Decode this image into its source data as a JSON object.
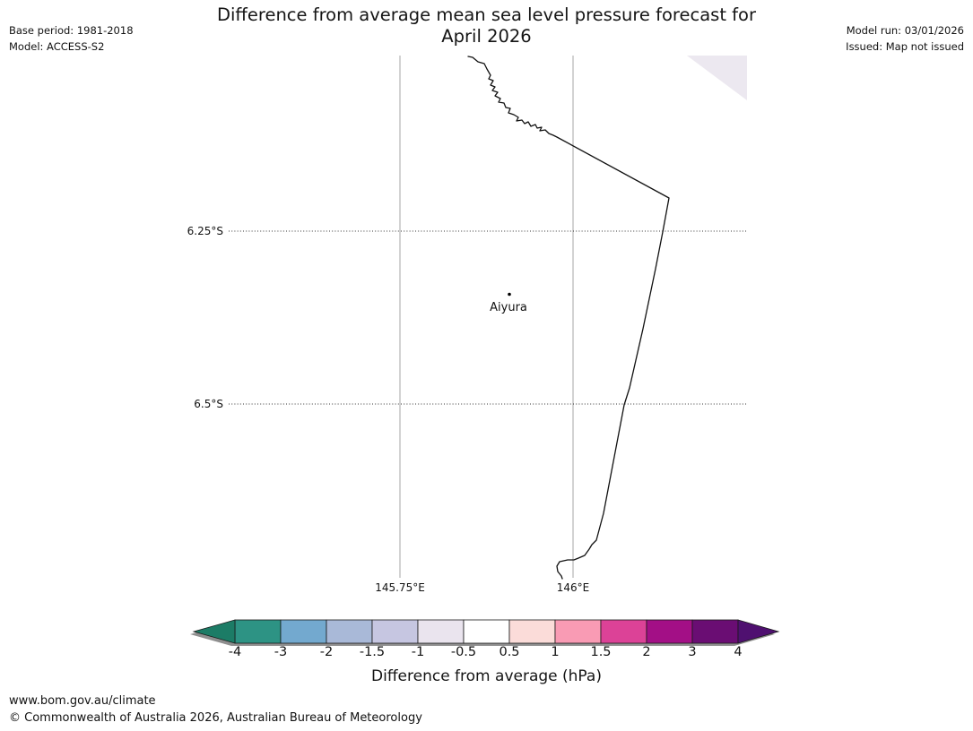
{
  "header": {
    "base_period": "Base period: 1981-2018",
    "model": "Model: ACCESS-S2",
    "title_lines": [
      "Difference from average mean sea level pressure forecast for",
      "April 2026"
    ],
    "model_run": "Model run: 03/01/2026",
    "issued": "Issued: Map not issued"
  },
  "map": {
    "longitude_labels": [
      "145.75°E",
      "146°E"
    ],
    "latitude_labels": [
      "6.25°S",
      "6.5°S"
    ],
    "station": {
      "name": "Aiyura"
    },
    "shaded_region_color": "#ece8f0",
    "coastline_color": "#111111",
    "gridline_color": "#a5a5a5"
  },
  "colorbar": {
    "label": "Difference from average (hPa)",
    "tick_labels": [
      "-4",
      "-3",
      "-2",
      "-1.5",
      "-1",
      "-0.5",
      "0.5",
      "1",
      "1.5",
      "2",
      "3",
      "4"
    ],
    "segment_colors": [
      "#2d9384",
      "#73a9cf",
      "#a9b9d8",
      "#c6c6e1",
      "#eae4ee",
      "#ffffff",
      "#fbdcd9",
      "#f99bb4",
      "#dc4297",
      "#a30f86",
      "#6a0d73"
    ],
    "under_arrow_color": "#1c7c66",
    "over_arrow_color": "#4f1070",
    "shadow_color": "#8f8f8f"
  },
  "footer": {
    "url": "www.bom.gov.au/climate",
    "copyright": "© Commonwealth of Australia 2026, Australian Bureau of Meteorology"
  },
  "chart_data": {
    "type": "map",
    "title": "Difference from average mean sea level pressure forecast for April 2026",
    "colorbar_label": "Difference from average (hPa)",
    "colorbar_ticks": [
      -4,
      -3,
      -2,
      -1.5,
      -1,
      -0.5,
      0.5,
      1,
      1.5,
      2,
      3,
      4
    ],
    "x_ticks": [
      "145.75°E",
      "146°E"
    ],
    "y_ticks": [
      "6.25°S",
      "6.5°S"
    ],
    "stations": [
      "Aiyura"
    ],
    "notes": "Map not issued - no anomaly shading shown except a pale region in the top-right corner"
  }
}
